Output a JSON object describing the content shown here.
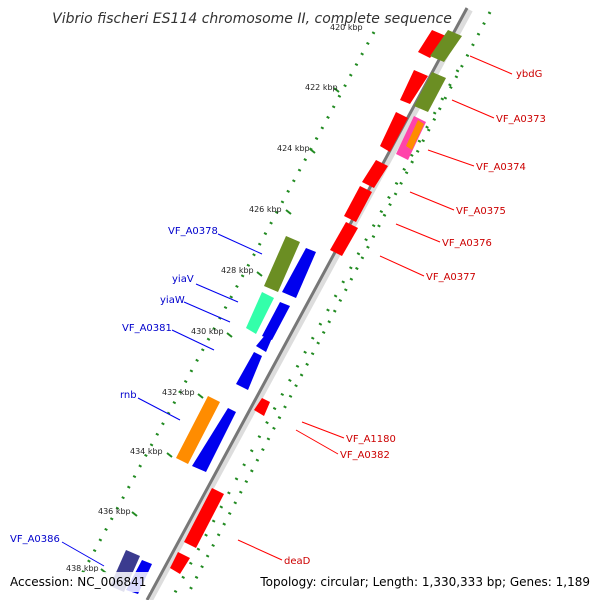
{
  "title": "Vibrio fischeri ES114 chromosome II, complete sequence",
  "accession": "Accession: NC_006841",
  "topology": "Topology: circular; Length: 1,330,333 bp; Genes: 1,189",
  "colors": {
    "backbone": "#888888",
    "forward_gene": "#ff0000",
    "reverse_gene": "#0000ee",
    "label_forward": "#cc0000",
    "label_reverse": "#0000cc",
    "dots": "#228b22",
    "cog_green": "#6b8e23",
    "cog_orange": "#ff8c00",
    "cog_teal": "#33ffaa",
    "cog_navy": "#3b3b8f"
  },
  "kbp_ticks": [
    "422 kbp",
    "424 kbp",
    "426 kbp",
    "428 kbp",
    "430 kbp",
    "432 kbp",
    "434 kbp",
    "436 kbp",
    "438 kbp"
  ],
  "top_partial_tick": "420 kbp",
  "gene_labels_forward": [
    "ybdG",
    "VF_A0373",
    "VF_A0374",
    "VF_A0375",
    "VF_A0376",
    "VF_A0377",
    "VF_A1180",
    "VF_A0382",
    "deaD"
  ],
  "gene_labels_reverse": [
    "VF_A0378",
    "yiaV",
    "yiaW",
    "VF_A0381",
    "rnb",
    "VF_A0386"
  ]
}
